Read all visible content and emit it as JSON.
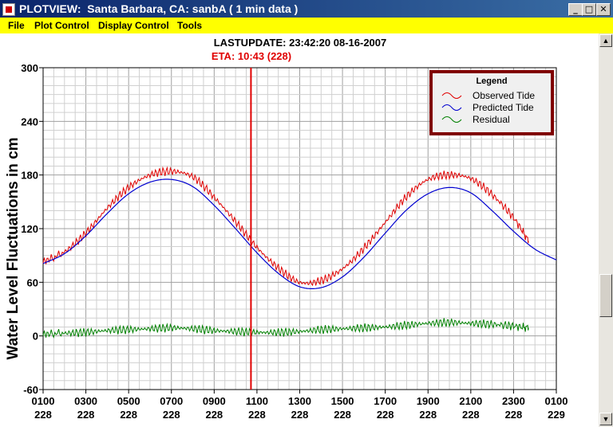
{
  "window": {
    "title": "PLOTVIEW:  Santa Barbara, CA: sanbA ( 1 min data )",
    "minimize_glyph": "_",
    "maximize_glyph": "□",
    "close_glyph": "✕"
  },
  "menu": {
    "items": [
      {
        "label": "File"
      },
      {
        "label": "Plot Control"
      },
      {
        "label": "Display Control"
      },
      {
        "label": "Tools"
      }
    ]
  },
  "header": {
    "last_update": "LASTUPDATE: 23:42:20  08-16-2007",
    "eta": "ETA: 10:43 (228)"
  },
  "colors": {
    "observed": "#e00000",
    "predicted": "#0000d0",
    "residual": "#008000",
    "eta_marker": "#e00000",
    "legend_border": "#800000"
  },
  "chart_data": {
    "type": "line",
    "ylabel": "Water Level Fluctuations in cm",
    "ylim": [
      -60,
      300
    ],
    "yticks": [
      -60,
      0,
      60,
      120,
      180,
      240,
      300
    ],
    "xlim": [
      1,
      25
    ],
    "xticks": [
      {
        "x": 1,
        "time": "0100",
        "day": "228"
      },
      {
        "x": 3,
        "time": "0300",
        "day": "228"
      },
      {
        "x": 5,
        "time": "0500",
        "day": "228"
      },
      {
        "x": 7,
        "time": "0700",
        "day": "228"
      },
      {
        "x": 9,
        "time": "0900",
        "day": "228"
      },
      {
        "x": 11,
        "time": "1100",
        "day": "228"
      },
      {
        "x": 13,
        "time": "1300",
        "day": "228"
      },
      {
        "x": 15,
        "time": "1500",
        "day": "228"
      },
      {
        "x": 17,
        "time": "1700",
        "day": "228"
      },
      {
        "x": 19,
        "time": "1900",
        "day": "228"
      },
      {
        "x": 21,
        "time": "2100",
        "day": "228"
      },
      {
        "x": 23,
        "time": "2300",
        "day": "228"
      },
      {
        "x": 25,
        "time": "0100",
        "day": "229"
      }
    ],
    "eta_x": 10.72,
    "observed_end_x": 23.7,
    "grid": true,
    "legend": {
      "title": "Legend",
      "placement": "top-right",
      "entries": [
        "Observed Tide",
        "Predicted Tide",
        "Residual"
      ]
    },
    "series": [
      {
        "name": "Predicted Tide",
        "x": [
          1,
          2,
          3,
          4,
          5,
          6,
          7,
          8,
          9,
          10,
          11,
          12,
          13,
          14,
          15,
          16,
          17,
          18,
          19,
          20,
          21,
          22,
          23,
          24,
          25
        ],
        "values": [
          81,
          92,
          112,
          137,
          159,
          172,
          175,
          167,
          146,
          120,
          93,
          70,
          55,
          54,
          66,
          88,
          115,
          141,
          159,
          166,
          160,
          140,
          117,
          97,
          85
        ]
      },
      {
        "name": "Observed Tide",
        "x": [
          1,
          2,
          3,
          4,
          5,
          6,
          7,
          8,
          9,
          10,
          11,
          12,
          13,
          14,
          15,
          16,
          17,
          18,
          19,
          20,
          21,
          22,
          23,
          23.7
        ],
        "values": [
          83,
          94,
          115,
          143,
          166,
          180,
          184,
          178,
          155,
          128,
          99,
          76,
          60,
          62,
          75,
          98,
          127,
          156,
          175,
          180,
          176,
          158,
          132,
          106
        ]
      },
      {
        "name": "Residual",
        "x": [
          1,
          2,
          3,
          4,
          5,
          6,
          7,
          8,
          9,
          10,
          11,
          12,
          13,
          14,
          15,
          16,
          17,
          18,
          19,
          20,
          21,
          22,
          23,
          23.7
        ],
        "values": [
          2,
          3,
          4,
          6,
          7,
          8,
          9,
          8,
          6,
          5,
          4,
          4,
          5,
          7,
          8,
          9,
          10,
          12,
          14,
          15,
          14,
          13,
          11,
          9
        ]
      }
    ]
  }
}
